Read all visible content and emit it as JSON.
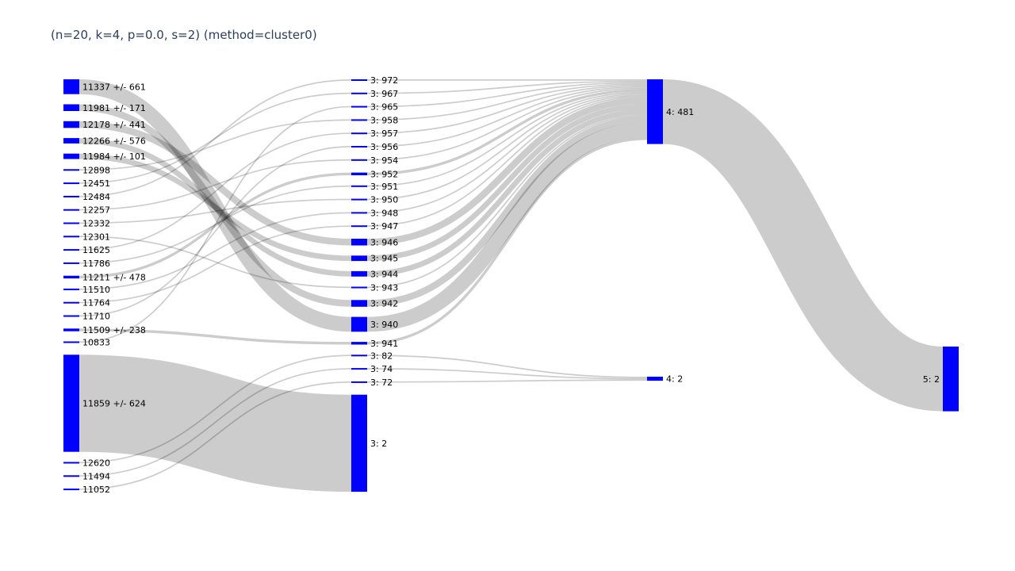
{
  "title": "(n=20, k=4, p=0.0, s=2) (method=cluster0)",
  "colors": {
    "node": "#0000ff",
    "link": "#000000",
    "link_opacity": 0.2,
    "title": "#2a3f5f"
  },
  "chart_data": {
    "type": "sankey",
    "title": "(n=20, k=4, p=0.0, s=2) (method=cluster0)",
    "columns": [
      [
        "11337 +/- 661",
        "11981 +/- 171",
        "12178 +/- 441",
        "12266 +/- 576",
        "11984 +/- 101",
        "12898",
        "12451",
        "12484",
        "12257",
        "12332",
        "12301",
        "11625",
        "11786",
        "11211 +/- 478",
        "11510",
        "11764",
        "11710",
        "11509 +/- 238",
        "10833",
        "11859 +/- 624",
        "12620",
        "11494",
        "11052"
      ],
      [
        "3: 972",
        "3: 967",
        "3: 965",
        "3: 958",
        "3: 957",
        "3: 956",
        "3: 954",
        "3: 952",
        "3: 951",
        "3: 950",
        "3: 948",
        "3: 947",
        "3: 946",
        "3: 945",
        "3: 944",
        "3: 943",
        "3: 942",
        "3: 940",
        "3: 941",
        "3: 82",
        "3: 74",
        "3: 72",
        "3: 2"
      ],
      [
        "4: 481",
        "4: 2"
      ],
      [
        "5: 2"
      ]
    ],
    "node_sizes": {
      "11337 +/- 661": 11,
      "11981 +/- 171": 5,
      "12178 +/- 441": 5,
      "12266 +/- 576": 4,
      "11984 +/- 101": 4,
      "12898": 1,
      "12451": 1,
      "12484": 1,
      "12257": 1,
      "12332": 1,
      "12301": 1,
      "11625": 1,
      "11786": 1,
      "11211 +/- 478": 2,
      "11510": 1,
      "11764": 1,
      "11710": 1,
      "11509 +/- 238": 2,
      "10833": 1,
      "11859 +/- 624": 72,
      "12620": 1,
      "11494": 1,
      "11052": 1,
      "3: 972": 1,
      "3: 967": 1,
      "3: 965": 1,
      "3: 958": 1,
      "3: 957": 1,
      "3: 956": 1,
      "3: 954": 1,
      "3: 952": 2,
      "3: 951": 1,
      "3: 950": 1,
      "3: 948": 1,
      "3: 947": 1,
      "3: 946": 5,
      "3: 945": 4,
      "3: 944": 4,
      "3: 943": 1,
      "3: 942": 5,
      "3: 940": 11,
      "3: 941": 2,
      "3: 82": 1,
      "3: 74": 1,
      "3: 72": 1,
      "3: 2": 72,
      "4: 481": 48,
      "4: 2": 3,
      "5: 2": 48
    },
    "links": [
      {
        "source": "11337 +/- 661",
        "target": "3: 940",
        "value": 11
      },
      {
        "source": "11981 +/- 171",
        "target": "3: 942",
        "value": 5
      },
      {
        "source": "12178 +/- 441",
        "target": "3: 946",
        "value": 5
      },
      {
        "source": "12266 +/- 576",
        "target": "3: 944",
        "value": 4
      },
      {
        "source": "11984 +/- 101",
        "target": "3: 945",
        "value": 4
      },
      {
        "source": "12898",
        "target": "3: 958",
        "value": 1
      },
      {
        "source": "12451",
        "target": "3: 967",
        "value": 1
      },
      {
        "source": "12484",
        "target": "3: 972",
        "value": 1
      },
      {
        "source": "12257",
        "target": "3: 954",
        "value": 1
      },
      {
        "source": "12332",
        "target": "3: 950",
        "value": 1
      },
      {
        "source": "12301",
        "target": "3: 943",
        "value": 1
      },
      {
        "source": "11625",
        "target": "3: 957",
        "value": 1
      },
      {
        "source": "11786",
        "target": "3: 951",
        "value": 1
      },
      {
        "source": "11211 +/- 478",
        "target": "3: 952",
        "value": 2
      },
      {
        "source": "11510",
        "target": "3: 948",
        "value": 1
      },
      {
        "source": "11764",
        "target": "3: 947",
        "value": 1
      },
      {
        "source": "11710",
        "target": "3: 956",
        "value": 1
      },
      {
        "source": "11509 +/- 238",
        "target": "3: 941",
        "value": 2
      },
      {
        "source": "10833",
        "target": "3: 965",
        "value": 1
      },
      {
        "source": "11859 +/- 624",
        "target": "3: 2",
        "value": 72
      },
      {
        "source": "12620",
        "target": "3: 82",
        "value": 1
      },
      {
        "source": "11494",
        "target": "3: 74",
        "value": 1
      },
      {
        "source": "11052",
        "target": "3: 72",
        "value": 1
      },
      {
        "source": "3: 972",
        "target": "4: 481",
        "value": 1
      },
      {
        "source": "3: 967",
        "target": "4: 481",
        "value": 1
      },
      {
        "source": "3: 965",
        "target": "4: 481",
        "value": 1
      },
      {
        "source": "3: 958",
        "target": "4: 481",
        "value": 1
      },
      {
        "source": "3: 957",
        "target": "4: 481",
        "value": 1
      },
      {
        "source": "3: 956",
        "target": "4: 481",
        "value": 1
      },
      {
        "source": "3: 954",
        "target": "4: 481",
        "value": 1
      },
      {
        "source": "3: 952",
        "target": "4: 481",
        "value": 2
      },
      {
        "source": "3: 951",
        "target": "4: 481",
        "value": 1
      },
      {
        "source": "3: 950",
        "target": "4: 481",
        "value": 1
      },
      {
        "source": "3: 948",
        "target": "4: 481",
        "value": 1
      },
      {
        "source": "3: 947",
        "target": "4: 481",
        "value": 1
      },
      {
        "source": "3: 946",
        "target": "4: 481",
        "value": 5
      },
      {
        "source": "3: 945",
        "target": "4: 481",
        "value": 4
      },
      {
        "source": "3: 944",
        "target": "4: 481",
        "value": 4
      },
      {
        "source": "3: 943",
        "target": "4: 481",
        "value": 1
      },
      {
        "source": "3: 942",
        "target": "4: 481",
        "value": 5
      },
      {
        "source": "3: 940",
        "target": "4: 481",
        "value": 11
      },
      {
        "source": "3: 941",
        "target": "4: 481",
        "value": 2
      },
      {
        "source": "3: 82",
        "target": "4: 2",
        "value": 1
      },
      {
        "source": "3: 74",
        "target": "4: 2",
        "value": 1
      },
      {
        "source": "3: 72",
        "target": "4: 2",
        "value": 1
      },
      {
        "source": "4: 481",
        "target": "5: 2",
        "value": 48
      }
    ]
  }
}
